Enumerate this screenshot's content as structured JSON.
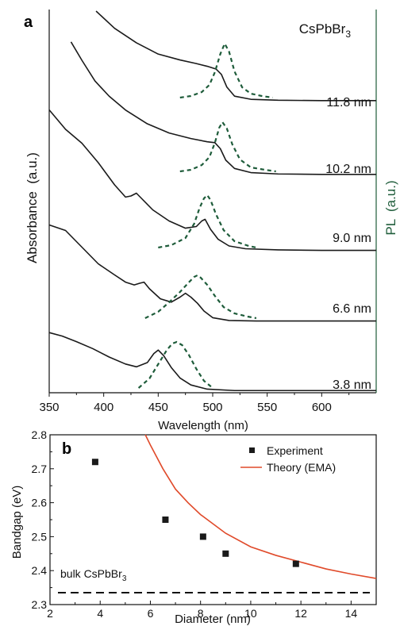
{
  "chart_data": [
    {
      "panel_label": "a",
      "type": "line",
      "title": "CsPbBr3",
      "title_main": "CsPbBr",
      "title_sub": "3",
      "xlabel": "Wavelength (nm)",
      "ylabel_left": "Absorbance  (a.u.)",
      "ylabel_right": "PL  (a.u.)",
      "xlim": [
        350,
        650
      ],
      "xticks": [
        "350",
        "400",
        "450",
        "500",
        "550",
        "600"
      ],
      "colors": {
        "absorbance": "#1a1a1a",
        "pl": "#1e5c3a",
        "right_axis": "#1e5c3a"
      },
      "series": [
        {
          "name": "11.8 nm",
          "absorbance": {
            "x": [
              393,
              410,
              430,
              450,
              470,
              485,
              495,
              503,
              508,
              513,
              520,
              535,
              560,
              600,
              650
            ],
            "y": [
              2.0,
              1.62,
              1.3,
              1.05,
              0.92,
              0.84,
              0.78,
              0.72,
              0.6,
              0.32,
              0.12,
              0.05,
              0.03,
              0.02,
              0.02
            ]
          },
          "pl": {
            "x": [
              470,
              480,
              490,
              497,
              502,
              507,
              511,
              515,
              520,
              527,
              535,
              545,
              555
            ],
            "y": [
              0.0,
              0.02,
              0.07,
              0.16,
              0.32,
              0.55,
              0.68,
              0.58,
              0.33,
              0.13,
              0.05,
              0.02,
              0.0
            ]
          }
        },
        {
          "name": "10.2 nm",
          "absorbance": {
            "x": [
              370,
              380,
              392,
              405,
              420,
              440,
              460,
              480,
              495,
              502,
              507,
              512,
              520,
              535,
              560,
              600,
              650
            ],
            "y": [
              2.9,
              2.5,
              2.05,
              1.72,
              1.42,
              1.12,
              0.92,
              0.8,
              0.73,
              0.71,
              0.58,
              0.33,
              0.15,
              0.06,
              0.03,
              0.02,
              0.02
            ]
          },
          "pl": {
            "x": [
              470,
              480,
              490,
              497,
              502,
              506,
              509,
              513,
              518,
              525,
              535,
              548,
              558
            ],
            "y": [
              0.0,
              0.02,
              0.08,
              0.18,
              0.36,
              0.55,
              0.62,
              0.54,
              0.34,
              0.15,
              0.05,
              0.02,
              0.0
            ]
          }
        },
        {
          "name": "9.0 nm",
          "absorbance": {
            "x": [
              350,
              365,
              380,
              395,
              410,
              420,
              425,
              430,
              435,
              445,
              460,
              475,
              485,
              490,
              493,
              498,
              505,
              515,
              530,
              560,
              600,
              650
            ],
            "y": [
              2.55,
              2.2,
              1.95,
              1.6,
              1.2,
              0.98,
              1.0,
              1.05,
              0.95,
              0.75,
              0.55,
              0.42,
              0.45,
              0.55,
              0.58,
              0.4,
              0.22,
              0.1,
              0.05,
              0.03,
              0.02,
              0.02
            ]
          },
          "pl": {
            "x": [
              450,
              462,
              475,
              483,
              488,
              492,
              495,
              498,
              503,
              510,
              520,
              533,
              540
            ],
            "y": [
              0.0,
              0.03,
              0.12,
              0.3,
              0.5,
              0.62,
              0.66,
              0.6,
              0.42,
              0.22,
              0.08,
              0.02,
              0.0
            ]
          }
        },
        {
          "name": "6.6 nm",
          "absorbance": {
            "x": [
              350,
              365,
              380,
              395,
              410,
              420,
              428,
              433,
              437,
              442,
              452,
              462,
              470,
              475,
              480,
              486,
              492,
              500,
              515,
              540,
              600,
              650
            ],
            "y": [
              1.75,
              1.65,
              1.35,
              1.05,
              0.85,
              0.72,
              0.67,
              0.7,
              0.72,
              0.6,
              0.42,
              0.36,
              0.45,
              0.52,
              0.45,
              0.34,
              0.2,
              0.08,
              0.03,
              0.02,
              0.02,
              0.02
            ]
          },
          "pl": {
            "x": [
              438,
              450,
              460,
              470,
              478,
              483,
              486,
              489,
              495,
              502,
              510,
              520,
              532,
              540
            ],
            "y": [
              0.0,
              0.08,
              0.2,
              0.33,
              0.45,
              0.52,
              0.54,
              0.51,
              0.42,
              0.28,
              0.14,
              0.06,
              0.02,
              0.0
            ]
          }
        },
        {
          "name": "3.8 nm",
          "absorbance": {
            "x": [
              350,
              362,
              375,
              390,
              405,
              420,
              430,
              440,
              446,
              450,
              455,
              462,
              470,
              480,
              495,
              520,
              560,
              600,
              650
            ],
            "y": [
              0.85,
              0.8,
              0.72,
              0.62,
              0.5,
              0.4,
              0.36,
              0.42,
              0.55,
              0.6,
              0.52,
              0.35,
              0.2,
              0.1,
              0.04,
              0.02,
              0.02,
              0.02,
              0.02
            ]
          },
          "pl": {
            "x": [
              432,
              442,
              450,
              458,
              463,
              467,
              472,
              478,
              485,
              492,
              500
            ],
            "y": [
              0.0,
              0.12,
              0.3,
              0.48,
              0.56,
              0.58,
              0.54,
              0.42,
              0.24,
              0.09,
              0.0
            ]
          }
        }
      ]
    },
    {
      "panel_label": "b",
      "type": "scatter",
      "xlabel": "Diameter (nm)",
      "ylabel": "Bandgap (eV)",
      "xlim": [
        2,
        15
      ],
      "ylim": [
        2.3,
        2.8
      ],
      "xticks": [
        "2",
        "4",
        "6",
        "8",
        "10",
        "12",
        "14"
      ],
      "yticks": [
        "2.3",
        "2.4",
        "2.5",
        "2.6",
        "2.7",
        "2.8"
      ],
      "legend_position": "top-right",
      "legend": {
        "experiment": "Experiment",
        "theory": "Theory (EMA)"
      },
      "series": [
        {
          "name": "Experiment",
          "type": "scatter",
          "color": "#1a1a1a",
          "x": [
            3.8,
            6.6,
            8.1,
            9.0,
            11.8
          ],
          "y": [
            2.72,
            2.55,
            2.5,
            2.45,
            2.42
          ]
        },
        {
          "name": "Theory (EMA)",
          "type": "line",
          "color": "#e04a2a",
          "x": [
            5.8,
            6.0,
            6.5,
            7.0,
            7.5,
            8.0,
            9.0,
            10.0,
            11.0,
            12.0,
            13.0,
            14.0,
            15.0
          ],
          "y": [
            2.8,
            2.77,
            2.7,
            2.64,
            2.6,
            2.565,
            2.51,
            2.47,
            2.445,
            2.425,
            2.405,
            2.39,
            2.377
          ]
        }
      ],
      "reference_line": {
        "y": 2.335,
        "label_main": "bulk CsPbBr",
        "label_sub": "3",
        "style": "dashed"
      }
    }
  ]
}
